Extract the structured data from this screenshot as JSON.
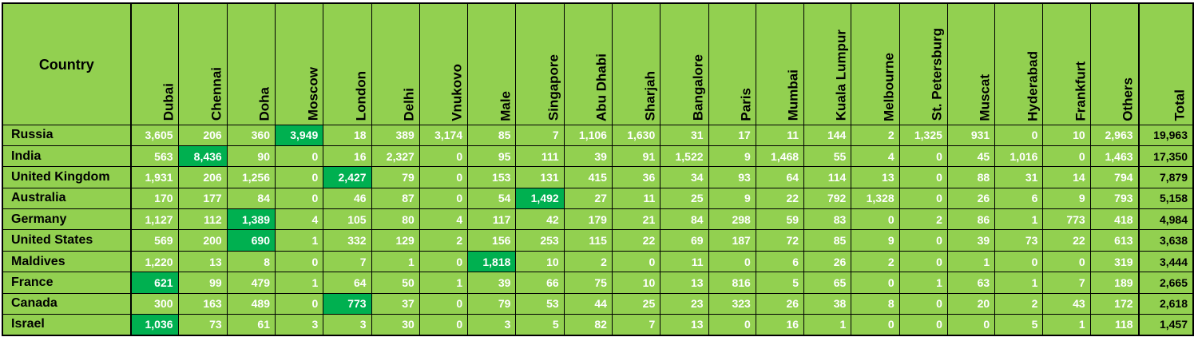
{
  "chart_data": {
    "type": "table",
    "highlight_color": "#00b050",
    "background_color": "#92d050",
    "row_header_label": "Country",
    "total_label": "Total",
    "columns": [
      "Dubai",
      "Chennai",
      "Doha",
      "Moscow",
      "London",
      "Delhi",
      "Vnukovo",
      "Male",
      "Singapore",
      "Abu Dhabi",
      "Sharjah",
      "Bangalore",
      "Paris",
      "Mumbai",
      "Kuala Lumpur",
      "Melbourne",
      "St. Petersburg",
      "Muscat",
      "Hyderabad",
      "Frankfurt",
      "Others"
    ],
    "rows": [
      {
        "country": "Russia",
        "values": [
          "3,605",
          "206",
          "360",
          "3,949",
          "18",
          "389",
          "3,174",
          "85",
          "7",
          "1,106",
          "1,630",
          "31",
          "17",
          "11",
          "144",
          "2",
          "1,325",
          "931",
          "0",
          "10",
          "2,963"
        ],
        "total": "19,963",
        "highlight": 3
      },
      {
        "country": "India",
        "values": [
          "563",
          "8,436",
          "90",
          "0",
          "16",
          "2,327",
          "0",
          "95",
          "111",
          "39",
          "91",
          "1,522",
          "9",
          "1,468",
          "55",
          "4",
          "0",
          "45",
          "1,016",
          "0",
          "1,463"
        ],
        "total": "17,350",
        "highlight": 1
      },
      {
        "country": "United Kingdom",
        "values": [
          "1,931",
          "206",
          "1,256",
          "0",
          "2,427",
          "79",
          "0",
          "153",
          "131",
          "415",
          "36",
          "34",
          "93",
          "64",
          "114",
          "13",
          "0",
          "88",
          "31",
          "14",
          "794"
        ],
        "total": "7,879",
        "highlight": 4
      },
      {
        "country": "Australia",
        "values": [
          "170",
          "177",
          "84",
          "0",
          "46",
          "87",
          "0",
          "54",
          "1,492",
          "27",
          "11",
          "25",
          "9",
          "22",
          "792",
          "1,328",
          "0",
          "26",
          "6",
          "9",
          "793"
        ],
        "total": "5,158",
        "highlight": 8
      },
      {
        "country": "Germany",
        "values": [
          "1,127",
          "112",
          "1,389",
          "4",
          "105",
          "80",
          "4",
          "117",
          "42",
          "179",
          "21",
          "84",
          "298",
          "59",
          "83",
          "0",
          "2",
          "86",
          "1",
          "773",
          "418"
        ],
        "total": "4,984",
        "highlight": 2
      },
      {
        "country": "United States",
        "values": [
          "569",
          "200",
          "690",
          "1",
          "332",
          "129",
          "2",
          "156",
          "253",
          "115",
          "22",
          "69",
          "187",
          "72",
          "85",
          "9",
          "0",
          "39",
          "73",
          "22",
          "613"
        ],
        "total": "3,638",
        "highlight": 2
      },
      {
        "country": "Maldives",
        "values": [
          "1,220",
          "13",
          "8",
          "0",
          "7",
          "1",
          "0",
          "1,818",
          "10",
          "2",
          "0",
          "11",
          "0",
          "6",
          "26",
          "2",
          "0",
          "1",
          "0",
          "0",
          "319"
        ],
        "total": "3,444",
        "highlight": 7
      },
      {
        "country": "France",
        "values": [
          "621",
          "99",
          "479",
          "1",
          "64",
          "50",
          "1",
          "39",
          "66",
          "75",
          "10",
          "13",
          "816",
          "5",
          "65",
          "0",
          "1",
          "63",
          "1",
          "7",
          "189"
        ],
        "total": "2,665",
        "highlight": 0
      },
      {
        "country": "Canada",
        "values": [
          "300",
          "163",
          "489",
          "0",
          "773",
          "37",
          "0",
          "79",
          "53",
          "44",
          "25",
          "23",
          "323",
          "26",
          "38",
          "8",
          "0",
          "20",
          "2",
          "43",
          "172"
        ],
        "total": "2,618",
        "highlight": 4
      },
      {
        "country": "Israel",
        "values": [
          "1,036",
          "73",
          "61",
          "3",
          "3",
          "30",
          "0",
          "3",
          "5",
          "82",
          "7",
          "13",
          "0",
          "16",
          "1",
          "0",
          "0",
          "0",
          "5",
          "1",
          "118"
        ],
        "total": "1,457",
        "highlight": 0
      }
    ]
  }
}
